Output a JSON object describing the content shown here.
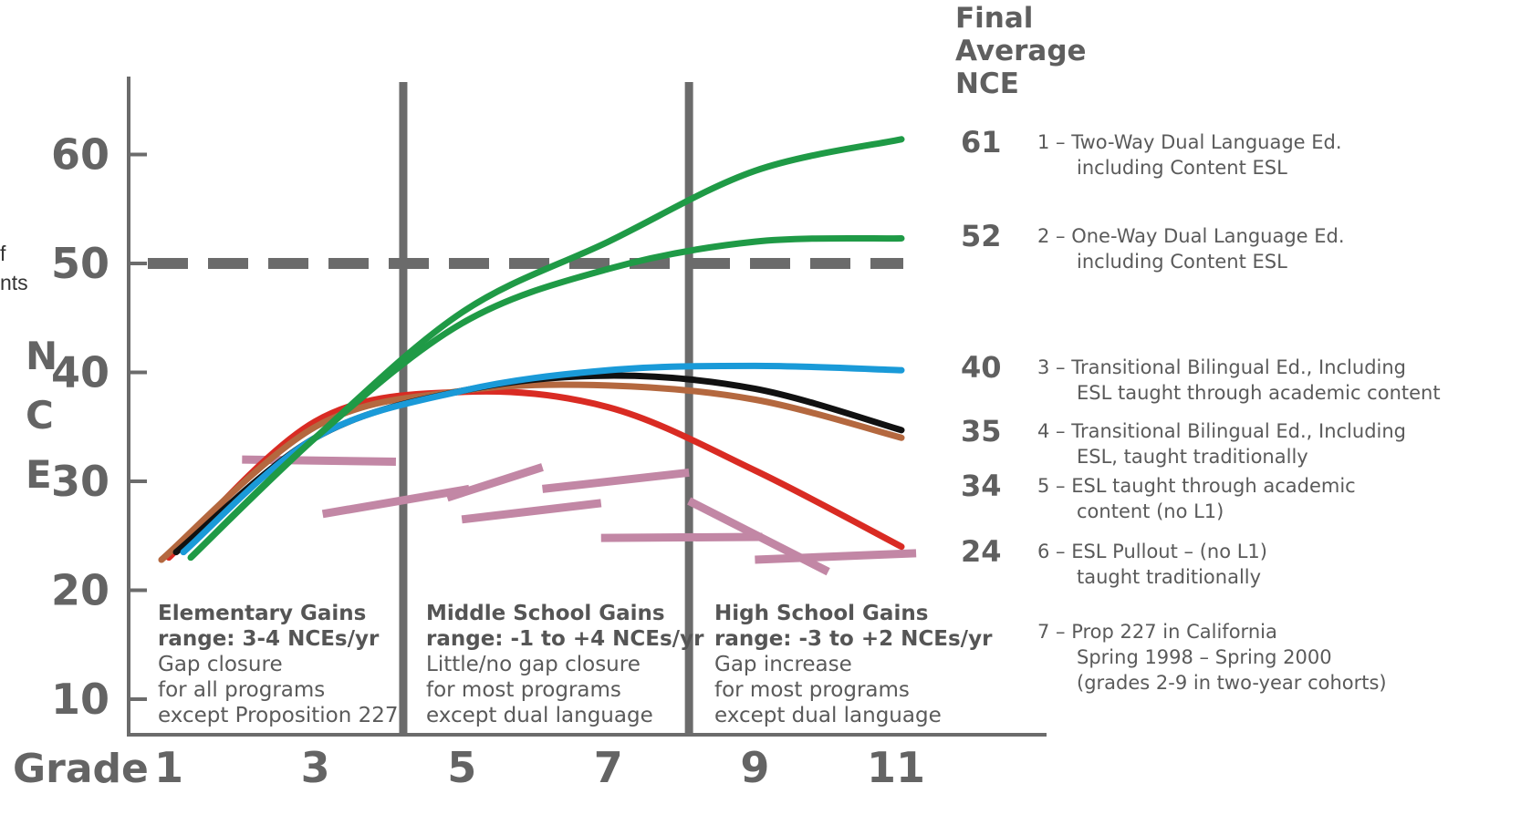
{
  "cut_text": [
    "f",
    "nts"
  ],
  "chart_data": {
    "type": "line",
    "xlabel": "Grade",
    "ylabel": "NCE",
    "x_ticks": [
      1,
      3,
      5,
      7,
      9,
      11
    ],
    "y_ticks": [
      10,
      20,
      30,
      40,
      50,
      60
    ],
    "xlim": [
      0.5,
      12.8
    ],
    "ylim": [
      7.5,
      67.5
    ],
    "grid": false,
    "reference_line": {
      "y": 50,
      "style": "dashed",
      "color": "#6b6b6b"
    },
    "dividers": [
      4.2,
      8.1
    ],
    "series": [
      {
        "id": 1,
        "color": "#1f9a46",
        "points": [
          [
            1.3,
            23
          ],
          [
            3,
            34
          ],
          [
            5,
            45.5
          ],
          [
            7,
            52
          ],
          [
            9,
            58.5
          ],
          [
            11,
            61.4
          ]
        ]
      },
      {
        "id": 2,
        "color": "#1f9a46",
        "points": [
          [
            1.3,
            23
          ],
          [
            3,
            34
          ],
          [
            5,
            44.5
          ],
          [
            7,
            49.5
          ],
          [
            9,
            52
          ],
          [
            11,
            52.3
          ]
        ]
      },
      {
        "id": 3,
        "color": "#1a9ad8",
        "points": [
          [
            1.2,
            23.5
          ],
          [
            3,
            34
          ],
          [
            5,
            38.3
          ],
          [
            7,
            40.2
          ],
          [
            9,
            40.6
          ],
          [
            11,
            40.2
          ]
        ]
      },
      {
        "id": 4,
        "color": "#111111",
        "points": [
          [
            1.1,
            23.5
          ],
          [
            3,
            34
          ],
          [
            5,
            38.3
          ],
          [
            7,
            39.7
          ],
          [
            9,
            38.5
          ],
          [
            11,
            34.7
          ]
        ]
      },
      {
        "id": 5,
        "color": "#b4683f",
        "points": [
          [
            0.9,
            22.8
          ],
          [
            3,
            35
          ],
          [
            5,
            38.3
          ],
          [
            7,
            38.8
          ],
          [
            9,
            37.5
          ],
          [
            11,
            34
          ]
        ]
      },
      {
        "id": 6,
        "color": "#d92b23",
        "points": [
          [
            1.0,
            23
          ],
          [
            3,
            35.5
          ],
          [
            5,
            38.2
          ],
          [
            7,
            36.8
          ],
          [
            9,
            31
          ],
          [
            11,
            24
          ]
        ]
      }
    ],
    "prop227_segments": [
      [
        [
          2,
          32
        ],
        [
          4.1,
          31.8
        ]
      ],
      [
        [
          3.1,
          27
        ],
        [
          5.1,
          29.3
        ]
      ],
      [
        [
          4.8,
          28.5
        ],
        [
          6.1,
          31.3
        ]
      ],
      [
        [
          5,
          26.5
        ],
        [
          6.9,
          28
        ]
      ],
      [
        [
          6.1,
          29.3
        ],
        [
          8.1,
          30.8
        ]
      ],
      [
        [
          6.9,
          24.8
        ],
        [
          9.1,
          24.9
        ]
      ],
      [
        [
          8.1,
          28.2
        ],
        [
          10,
          21.7
        ]
      ],
      [
        [
          9,
          22.8
        ],
        [
          11.2,
          23.4
        ]
      ]
    ],
    "prop227_color": "#c287a5",
    "region_boxes": [
      {
        "title": [
          "Elementary Gains",
          "range: 3-4 NCEs/yr"
        ],
        "text": [
          "Gap closure",
          "for all programs",
          "except Proposition 227"
        ]
      },
      {
        "title": [
          "Middle School Gains",
          "range: -1 to +4 NCEs/yr"
        ],
        "text": [
          "Little/no gap closure",
          "for most programs",
          "except dual language"
        ]
      },
      {
        "title": [
          "High School Gains",
          "range: -3 to +2 NCEs/yr"
        ],
        "text": [
          "Gap increase",
          "for most programs",
          "except dual language"
        ]
      }
    ],
    "legend_header": [
      "Final",
      "Average",
      "NCE"
    ],
    "legend": [
      {
        "final": "61",
        "lines": [
          "1 – Two-Way Dual Language Ed.",
          "including Content ESL"
        ]
      },
      {
        "final": "52",
        "lines": [
          "2 – One-Way Dual Language Ed.",
          "including Content ESL"
        ]
      },
      {
        "final": "40",
        "lines": [
          "3 – Transitional Bilingual Ed., Including",
          "ESL taught through academic content"
        ]
      },
      {
        "final": "35",
        "lines": [
          "4 – Transitional Bilingual Ed., Including",
          "ESL, taught traditionally"
        ]
      },
      {
        "final": "34",
        "lines": [
          "5 – ESL taught through academic",
          "content (no L1)"
        ]
      },
      {
        "final": "24",
        "lines": [
          "6 – ESL Pullout – (no L1)",
          "taught traditionally"
        ]
      },
      {
        "final": "",
        "lines": [
          "7 – Prop 227 in California",
          "Spring 1998 – Spring 2000",
          "(grades 2-9 in two-year cohorts)"
        ]
      }
    ]
  }
}
